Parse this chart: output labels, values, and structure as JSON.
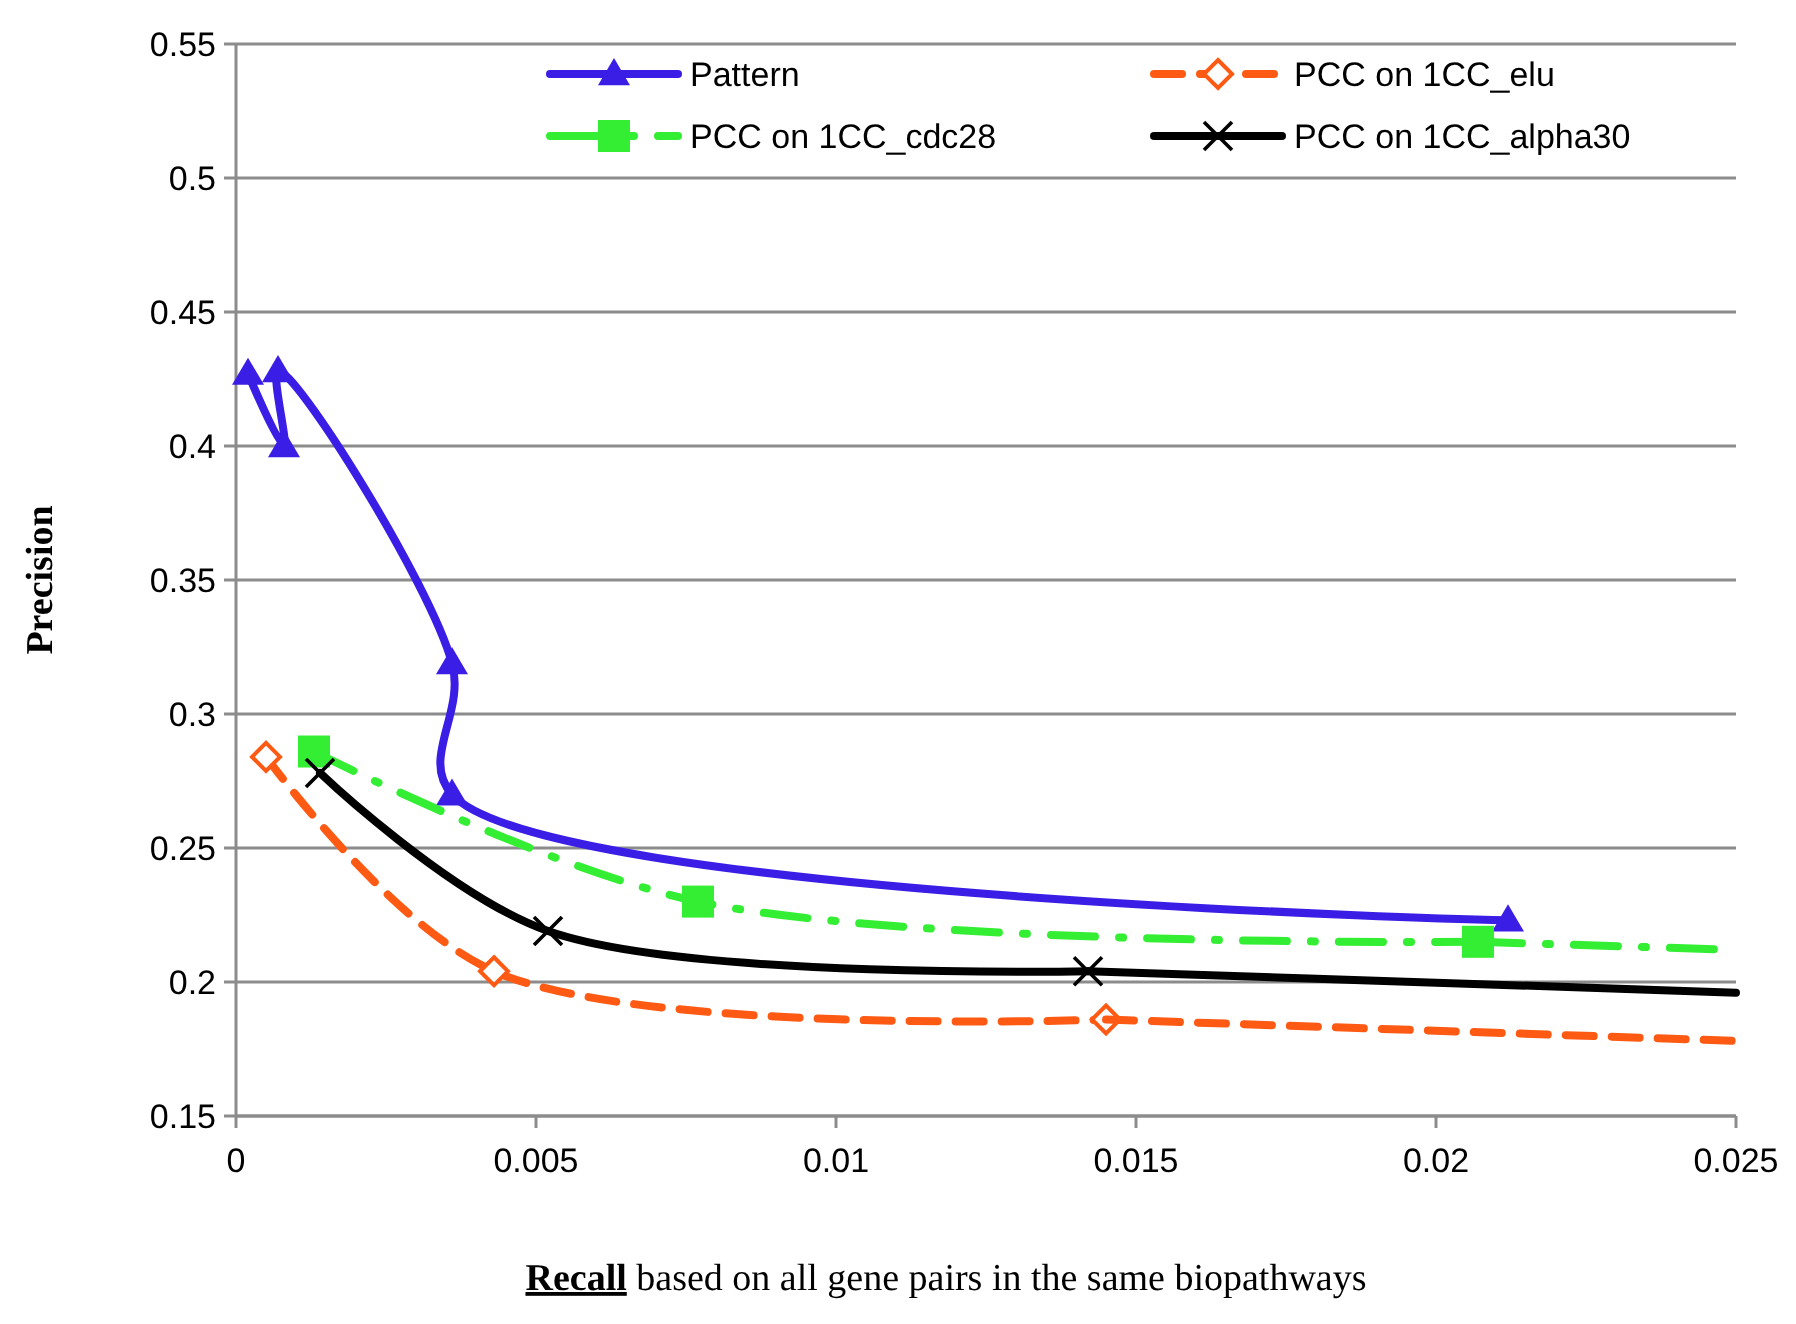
{
  "chart_data": {
    "type": "line",
    "xlabel": "Recall based on all gene pairs in the same biopathways",
    "ylabel": "Precision",
    "xlim": [
      0,
      0.025
    ],
    "xticks": [
      0,
      0.005,
      0.01,
      0.015,
      0.02,
      0.025
    ],
    "ylim": [
      0.15,
      0.55
    ],
    "yticks": [
      0.15,
      0.2,
      0.25,
      0.3,
      0.35,
      0.4,
      0.45,
      0.5,
      0.55
    ],
    "grid": "y",
    "legend": "top",
    "series": [
      {
        "name": "Pattern",
        "color": "#3a1ee6",
        "marker": "triangle",
        "line_style": "solid",
        "x": [
          0.0002,
          0.0008,
          0.0007,
          0.0036,
          0.0036,
          0.0212
        ],
        "values": [
          0.427,
          0.4,
          0.428,
          0.319,
          0.27,
          0.223
        ]
      },
      {
        "name": "PCC on 1CC_elu",
        "color": "#ff5a14",
        "marker": "diamond",
        "line_style": "dashed",
        "x": [
          0.0005,
          0.0043,
          0.0145
        ],
        "values": [
          0.284,
          0.204,
          0.186
        ]
      },
      {
        "name": "PCC on 1CC_cdc28",
        "color": "#33ee33",
        "marker": "square",
        "line_style": "dashdot",
        "x": [
          0.0013,
          0.0077,
          0.0207
        ],
        "values": [
          0.286,
          0.23,
          0.215
        ]
      },
      {
        "name": "PCC on 1CC_alpha30",
        "color": "#000000",
        "marker": "cross",
        "line_style": "solid",
        "x": [
          0.0014,
          0.0052,
          0.0142
        ],
        "values": [
          0.278,
          0.219,
          0.204
        ]
      },
      {
        "color": "#ff5a14",
        "marker": "none",
        "line_style": "dashed",
        "x": [
          0.0145,
          0.025
        ],
        "values": [
          0.186,
          0.178
        ]
      },
      {
        "color": "#33ee33",
        "marker": "none",
        "line_style": "dashdot",
        "x": [
          0.0207,
          0.025
        ],
        "values": [
          0.215,
          0.212
        ]
      },
      {
        "color": "#000000",
        "marker": "none",
        "line_style": "solid",
        "x": [
          0.0142,
          0.021,
          0.025
        ],
        "values": [
          0.204,
          0.199,
          0.196
        ]
      }
    ]
  }
}
